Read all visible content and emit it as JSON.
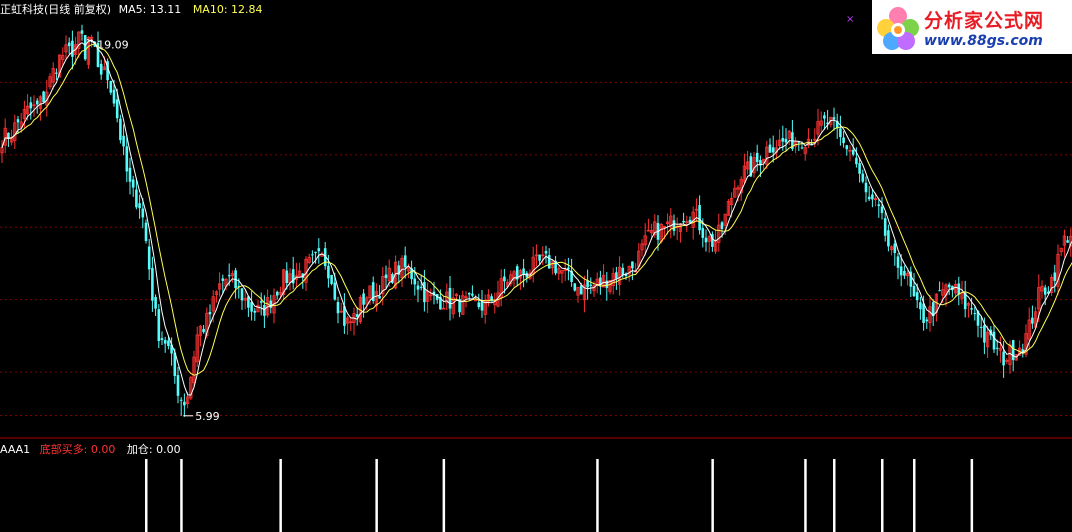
{
  "main_panel": {
    "stock_name": "正虹科技(日线 前复权)",
    "ma5_label": "MA5: 13.11",
    "ma10_label": "MA10: 12.84",
    "max_label": "19.09",
    "min_label": "5.99"
  },
  "indicator_panel": {
    "name": "AAA1",
    "series1_label": "底部买多: 0.00",
    "series2_label": "加仓: 0.00"
  },
  "logo": {
    "title": "分析家公式网",
    "url": "www.88gs.com"
  },
  "colors": {
    "background": "#000000",
    "up": "#ff3232",
    "down": "#54fcfc",
    "ma5": "#ffffff",
    "ma10": "#ffff54",
    "grid": "#800000",
    "separator": "#b00000",
    "signal": "#ffffff",
    "label_white": "#ffffff",
    "label_yellow": "#ffff54",
    "label_red": "#ff3232",
    "logo_red": "#e81c24",
    "logo_blue": "#1a3fae"
  },
  "chart_data": {
    "type": "candlestick",
    "price_range": [
      5.5,
      20.0
    ],
    "key_points": [
      {
        "index": 0,
        "close": 15.6
      },
      {
        "index": 10,
        "close": 16.6
      },
      {
        "index": 20,
        "close": 18.5
      },
      {
        "index": 26,
        "close": 19.09
      },
      {
        "index": 32,
        "close": 17.8
      },
      {
        "index": 42,
        "close": 13.5
      },
      {
        "index": 50,
        "close": 8.7
      },
      {
        "index": 57,
        "close": 6.5
      },
      {
        "index": 62,
        "close": 9.0
      },
      {
        "index": 70,
        "close": 10.7
      },
      {
        "index": 80,
        "close": 9.6
      },
      {
        "index": 90,
        "close": 10.8
      },
      {
        "index": 100,
        "close": 11.4
      },
      {
        "index": 108,
        "close": 9.2
      },
      {
        "index": 115,
        "close": 10.2
      },
      {
        "index": 125,
        "close": 11.1
      },
      {
        "index": 135,
        "close": 10.0
      },
      {
        "index": 150,
        "close": 9.8
      },
      {
        "index": 160,
        "close": 10.8
      },
      {
        "index": 170,
        "close": 11.3
      },
      {
        "index": 182,
        "close": 10.4
      },
      {
        "index": 195,
        "close": 11.0
      },
      {
        "index": 205,
        "close": 12.4
      },
      {
        "index": 215,
        "close": 13.0
      },
      {
        "index": 222,
        "close": 12.0
      },
      {
        "index": 232,
        "close": 14.4
      },
      {
        "index": 242,
        "close": 15.4
      },
      {
        "index": 252,
        "close": 15.6
      },
      {
        "index": 258,
        "close": 16.1
      },
      {
        "index": 264,
        "close": 15.3
      },
      {
        "index": 272,
        "close": 13.3
      },
      {
        "index": 280,
        "close": 11.2
      },
      {
        "index": 288,
        "close": 9.4
      },
      {
        "index": 296,
        "close": 10.4
      },
      {
        "index": 303,
        "close": 9.7
      },
      {
        "index": 308,
        "close": 8.6
      },
      {
        "index": 313,
        "close": 8.0
      },
      {
        "index": 318,
        "close": 8.4
      },
      {
        "index": 326,
        "close": 10.4
      },
      {
        "index": 334,
        "close": 12.3
      }
    ],
    "max": {
      "index": 26,
      "value": 19.09
    },
    "min": {
      "index": 56,
      "value": 5.99
    },
    "signals": [
      45,
      56,
      87,
      117,
      138,
      186,
      222,
      251,
      260,
      275,
      285,
      303
    ]
  }
}
